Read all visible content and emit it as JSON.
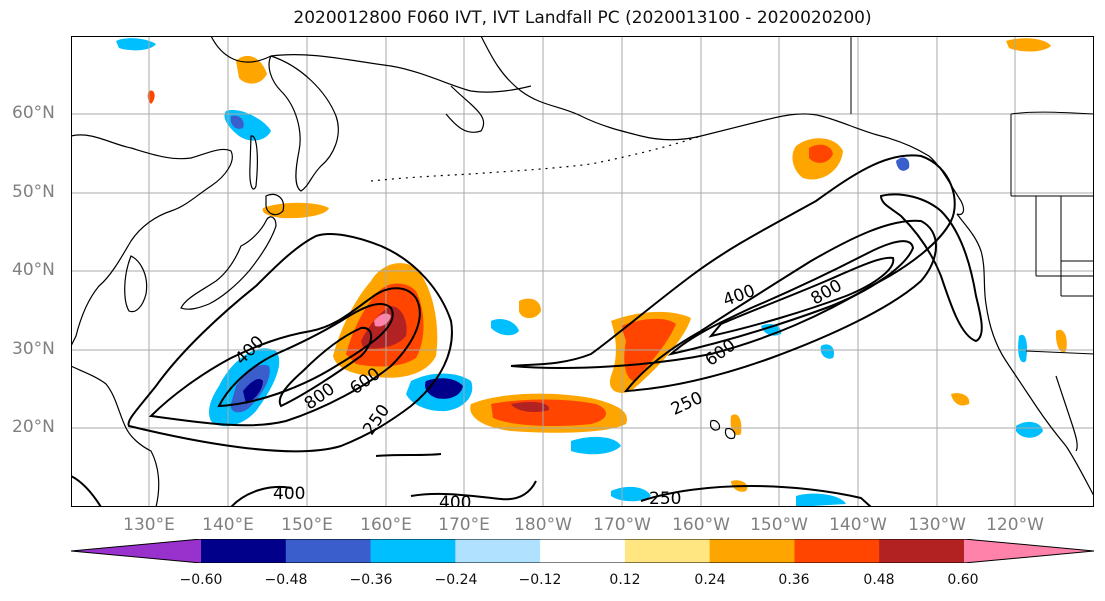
{
  "title": "2020012800 F060 IVT, IVT Landfall PC (2020013100 - 2020020200)",
  "latitude_labels": [
    "60°N",
    "50°N",
    "40°N",
    "30°N",
    "20°N"
  ],
  "longitude_labels": [
    "130°E",
    "140°E",
    "150°E",
    "160°E",
    "170°E",
    "180°W",
    "170°W",
    "160°W",
    "150°W",
    "140°W",
    "130°W",
    "120°W"
  ],
  "colorbar": {
    "colors": [
      "#9932cc",
      "#00008b",
      "#3a5fcd",
      "#00bfff",
      "#b0e2ff",
      "#ffffff",
      "#ffe680",
      "#ffa500",
      "#ff4500",
      "#b22222",
      "#ff82ab"
    ],
    "tick_labels": [
      "−0.60",
      "−0.48",
      "−0.36",
      "−0.24",
      "−0.12",
      "0.12",
      "0.24",
      "0.36",
      "0.48",
      "0.60"
    ]
  },
  "contour_labels": [
    "400",
    "800",
    "600",
    "250",
    "400",
    "800",
    "600",
    "250",
    "400",
    "400",
    "250"
  ],
  "colors": {
    "grid": "#a9a9a9",
    "coast": "#000000",
    "contour": "#000000",
    "axis_text": "#808080"
  }
}
